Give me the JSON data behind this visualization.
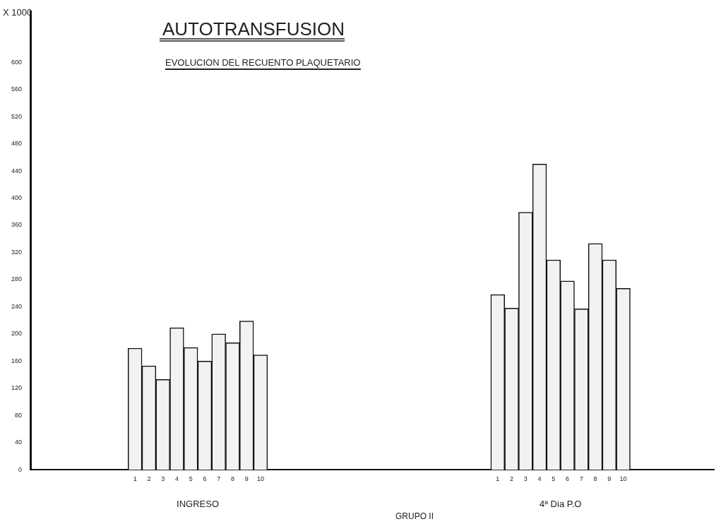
{
  "chart_data": {
    "type": "bar",
    "title": "AUTOTRANSFUSION",
    "subtitle": "EVOLUCION DEL RECUENTO PLAQUETARIO",
    "xlabel": "GRUPO II",
    "ylabel": "X 1000",
    "annotations": [
      "INGRESO",
      "4ª Dia P.O"
    ],
    "categories": [
      null,
      null,
      null,
      null,
      null,
      null,
      null,
      "1",
      "2",
      "3",
      "4",
      "5",
      "6",
      "7",
      "8",
      "9",
      "10",
      null,
      null,
      null,
      null,
      null,
      null,
      null,
      null,
      null,
      null,
      null,
      null,
      null,
      null,
      null,
      null,
      "1",
      "2",
      "3",
      "4",
      "5",
      "6",
      "7",
      "8",
      "9",
      "10",
      null,
      null,
      null,
      null,
      null,
      null
    ],
    "values": [
      null,
      null,
      null,
      null,
      null,
      null,
      null,
      179,
      153,
      133,
      209,
      180,
      160,
      200,
      187,
      219,
      169,
      null,
      null,
      null,
      null,
      null,
      null,
      null,
      null,
      null,
      null,
      null,
      null,
      null,
      null,
      null,
      null,
      258,
      238,
      379,
      450,
      309,
      278,
      237,
      333,
      309,
      267,
      null,
      null,
      null,
      null,
      null,
      null
    ],
    "color": "#f2f2f2",
    "ylim": [
      0,
      675
    ],
    "yticks": [
      0,
      40,
      80,
      120,
      160,
      200,
      240,
      280,
      320,
      360,
      400,
      440,
      480,
      520,
      560,
      600
    ],
    "grid": false,
    "legend": false
  }
}
